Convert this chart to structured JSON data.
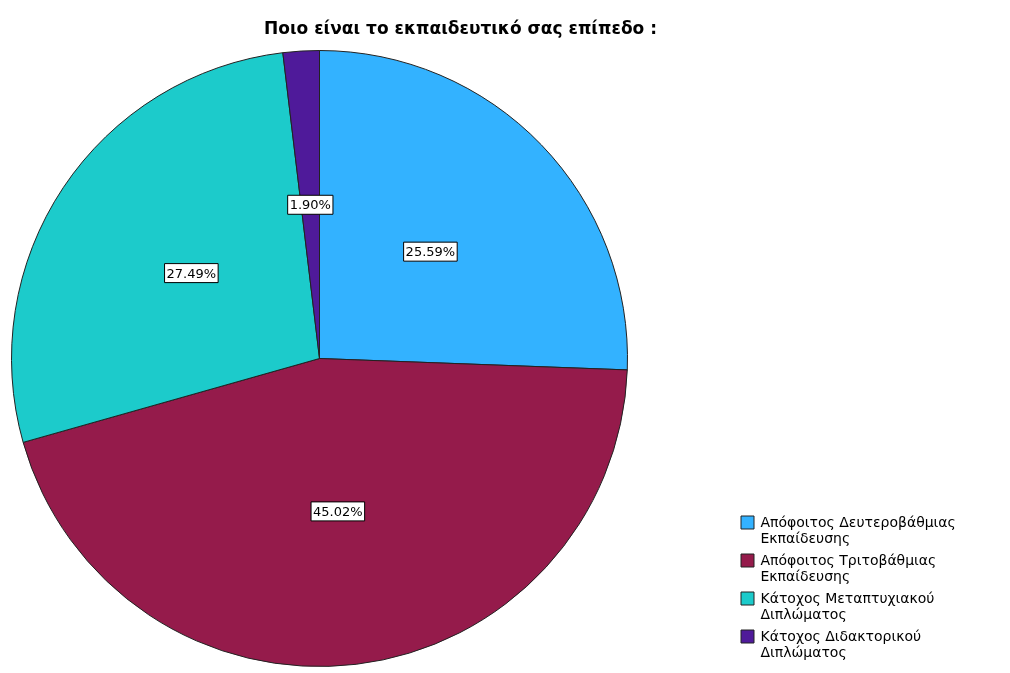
{
  "chart_data": {
    "type": "pie",
    "title": "Ποιο είναι το εκπαιδευτικό σας επίπεδο :",
    "categories": [
      "Απόφοιτος Δευτεροβάθμιας Εκπαίδευσης",
      "Απόφοιτος Τριτοβάθμιας Εκπαίδευσης",
      "Κάτοχος Μεταπτυχιακού Διπλώματος",
      "Κάτοχος Διδακτορικού Διπλώματος"
    ],
    "values": [
      25.59,
      45.02,
      27.49,
      1.9
    ],
    "value_labels": [
      "25.59%",
      "45.02%",
      "27.49%",
      "1.90%"
    ],
    "colors": [
      "#33b2ff",
      "#951b4b",
      "#1ccbcb",
      "#4f1a9a"
    ],
    "legend": "bottom right"
  }
}
